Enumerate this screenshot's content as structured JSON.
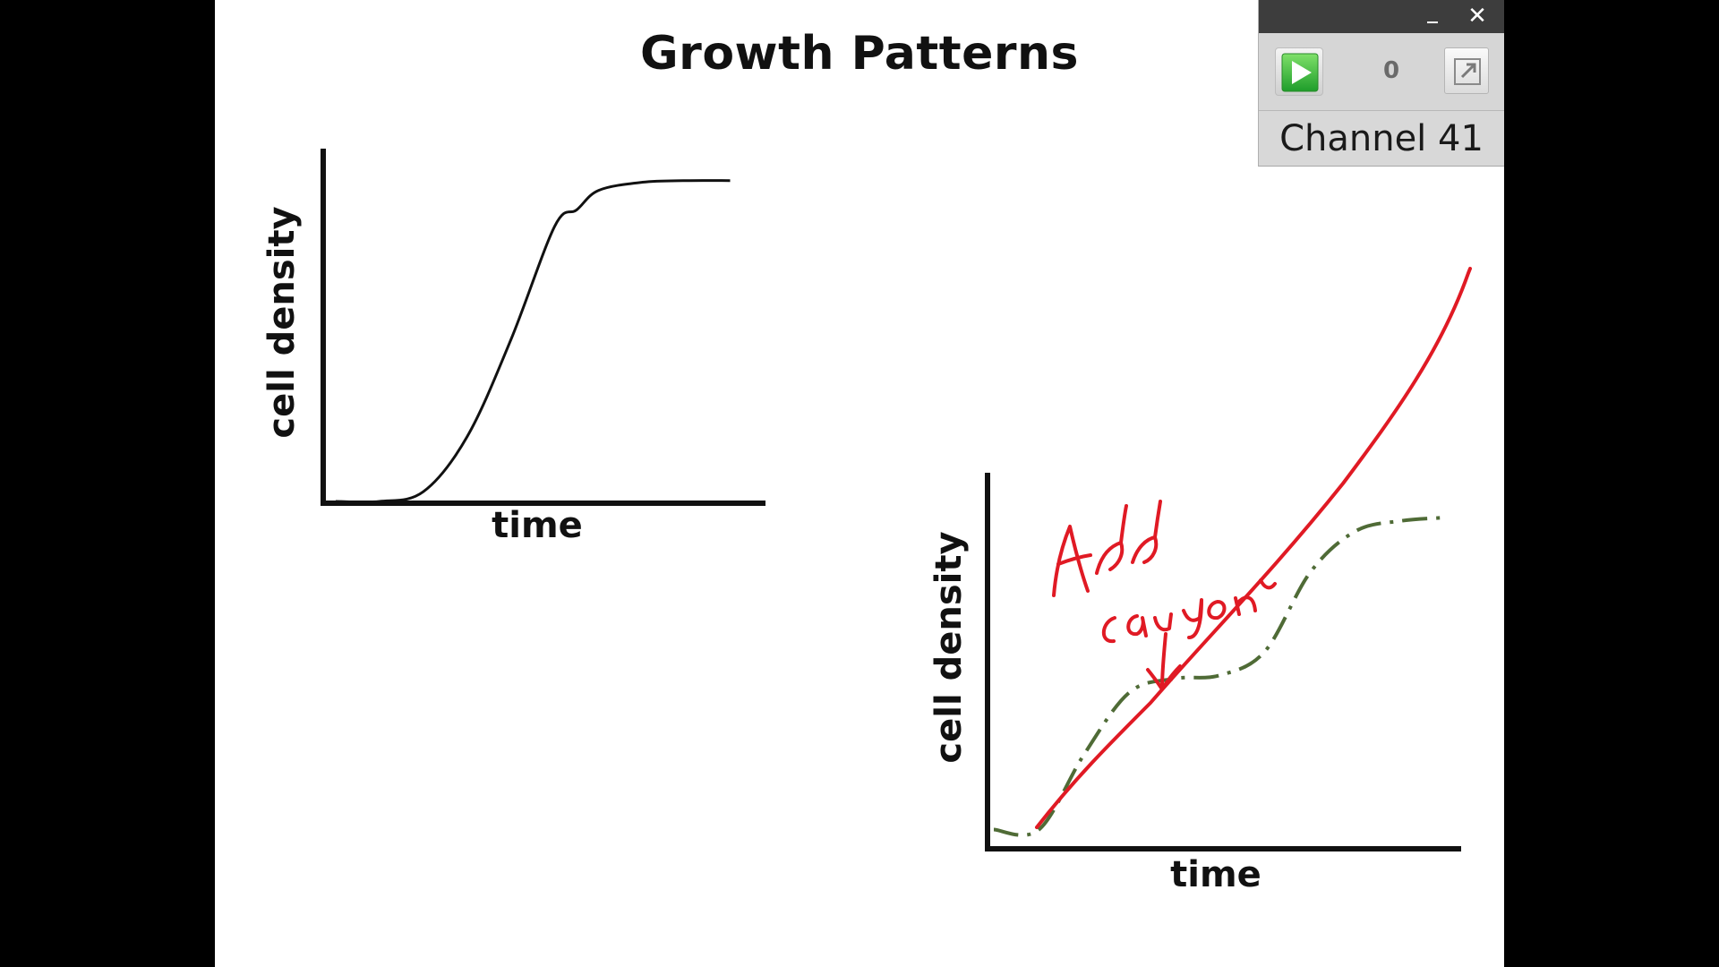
{
  "slide": {
    "title": "Growth Patterns"
  },
  "chart_data": [
    {
      "type": "line",
      "xlabel": "time",
      "ylabel": "cell density",
      "x": [
        0,
        1,
        2,
        3,
        4,
        5,
        5.5,
        6,
        7,
        8,
        9
      ],
      "series": [
        {
          "values": [
            0,
            0,
            0.03,
            0.2,
            0.5,
            0.85,
            0.9,
            0.96,
            0.985,
            0.99,
            0.99
          ],
          "color": "#111111"
        }
      ],
      "xlim": [
        0,
        9.5
      ],
      "ylim": [
        0,
        1.05
      ],
      "grid": false
    },
    {
      "type": "line",
      "xlabel": "time",
      "ylabel": "cell density",
      "x": [
        0,
        1,
        2,
        3,
        4,
        5,
        6,
        7,
        8,
        9,
        10
      ],
      "series": [
        {
          "values": [
            0.03,
            0.03,
            0.25,
            0.43,
            0.47,
            0.48,
            0.55,
            0.78,
            0.9,
            0.93,
            0.94
          ],
          "color": "#4f6b36",
          "style": "dash-dot"
        }
      ],
      "annotations": [
        {
          "kind": "handwritten",
          "text": "Add caffeine",
          "color": "#e01a24"
        }
      ],
      "xlim": [
        0,
        10.3
      ],
      "ylim": [
        0,
        1.0
      ],
      "grid": false
    }
  ],
  "ink": {
    "color": "#e01a24",
    "stroke": "red-ink-line"
  },
  "widget": {
    "counter": "0",
    "channel": "Channel 41",
    "minimize_icon": "minimize-icon",
    "close_icon": "close-icon",
    "close_glyph": "✕",
    "play_icon": "play-icon",
    "popout_icon": "popout-icon"
  }
}
